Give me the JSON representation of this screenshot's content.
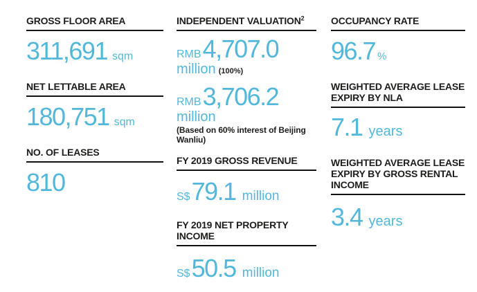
{
  "styles": {
    "accent": "#52b8db",
    "ink": "#1d1d1b",
    "bg": "#ffffff"
  },
  "columns": [
    {
      "blocks": [
        {
          "heading": "GROSS FLOOR AREA",
          "number": "311,691",
          "suffix": "sqm"
        },
        {
          "heading": "NET LETTABLE AREA",
          "number": "180,751",
          "suffix": "sqm"
        },
        {
          "heading": "NO. OF LEASES",
          "number": "810"
        }
      ]
    },
    {
      "blocks": [
        {
          "heading": "INDEPENDENT VALUATION",
          "heading_superscript": "2",
          "values": [
            {
              "prefix": "RMB",
              "number": "4,707.0",
              "unit": "million",
              "unit_note": "(100%)"
            },
            {
              "prefix": "RMB",
              "number": "3,706.2",
              "unit": "million",
              "note": "(Based on 60% interest of Beijing Wanliu)"
            }
          ]
        },
        {
          "heading": "FY 2019 GROSS REVENUE",
          "prefix": "S$",
          "number": "79.1",
          "suffix": "million"
        },
        {
          "heading": "FY 2019 NET PROPERTY INCOME",
          "prefix": "S$",
          "number": "50.5",
          "suffix": "million"
        }
      ]
    },
    {
      "blocks": [
        {
          "heading": "OCCUPANCY RATE",
          "number": "96.7",
          "suffix": "%"
        },
        {
          "heading": "WEIGHTED AVERAGE LEASE EXPIRY BY NLA",
          "number": "7.1",
          "suffix": "years"
        },
        {
          "heading": "WEIGHTED AVERAGE LEASE EXPIRY BY GROSS RENTAL INCOME",
          "number": "3.4",
          "suffix": "years"
        }
      ]
    }
  ]
}
